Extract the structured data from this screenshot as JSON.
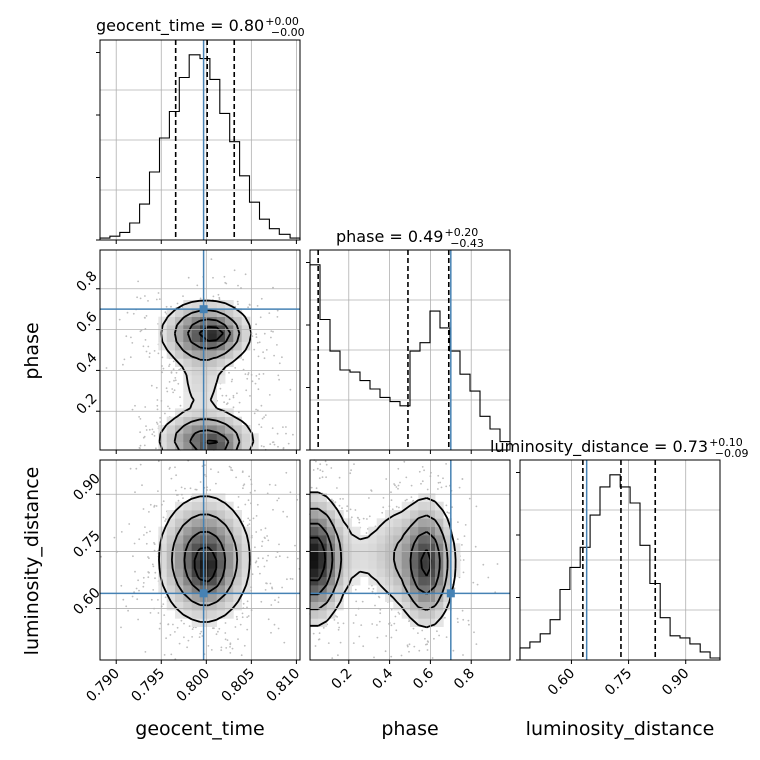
{
  "chart_data": {
    "type": "corner",
    "parameters": [
      "geocent_time",
      "phase",
      "luminosity_distance"
    ],
    "axis_labels": {
      "geocent_time": "geocent_time",
      "phase": "phase",
      "luminosity_distance": "luminosity_distance"
    },
    "titles": [
      {
        "param": "geocent_time",
        "label": "geocent_time = 0.80",
        "sup": "+0.00",
        "sub": "−0.00"
      },
      {
        "param": "phase",
        "label": "phase = 0.49",
        "sup": "+0.20",
        "sub": "−0.43"
      },
      {
        "param": "luminosity_distance",
        "label": "luminosity_distance = 0.73",
        "sup": "+0.10",
        "sub": "−0.09"
      }
    ],
    "ranges": {
      "geocent_time": [
        0.7882,
        0.8104
      ],
      "phase": [
        0.01,
        0.99
      ],
      "luminosity_distance": [
        0.465,
        0.99
      ]
    },
    "ticks": {
      "geocent_time": [
        "0.790",
        "0.795",
        "0.800",
        "0.805",
        "0.810"
      ],
      "phase": [
        "0.2",
        "0.4",
        "0.6",
        "0.8"
      ],
      "luminosity_distance": [
        "0.60",
        "0.75",
        "0.90"
      ]
    },
    "truths": {
      "geocent_time": 0.7997,
      "phase": 0.7,
      "luminosity_distance": 0.64
    },
    "quantiles": {
      "geocent_time": [
        0.7966,
        0.8001,
        0.8031
      ],
      "phase": [
        0.05,
        0.49,
        0.69
      ],
      "luminosity_distance": [
        0.63,
        0.73,
        0.82
      ]
    },
    "histograms": {
      "geocent_time": {
        "edges": [
          0.7882,
          0.7893,
          0.7904,
          0.7915,
          0.7926,
          0.7937,
          0.7948,
          0.7959,
          0.797,
          0.7981,
          0.7993,
          0.8004,
          0.8015,
          0.8026,
          0.8037,
          0.8048,
          0.8059,
          0.807,
          0.8081,
          0.8093,
          0.8104
        ],
        "counts": [
          1,
          2,
          4,
          9,
          19,
          36,
          54,
          68,
          86,
          98,
          96,
          85,
          67,
          52,
          34,
          20,
          11,
          6,
          3,
          1
        ]
      },
      "phase": {
        "edges": [
          0.01,
          0.059,
          0.108,
          0.157,
          0.206,
          0.255,
          0.304,
          0.353,
          0.402,
          0.451,
          0.5,
          0.549,
          0.598,
          0.647,
          0.696,
          0.745,
          0.794,
          0.843,
          0.892,
          0.941,
          0.99
        ],
        "counts": [
          88,
          62,
          47,
          38,
          37,
          33,
          29,
          25,
          23,
          21,
          47,
          51,
          66,
          58,
          47,
          36,
          28,
          16,
          10,
          4
        ]
      },
      "luminosity_distance": {
        "edges": [
          0.465,
          0.491,
          0.518,
          0.544,
          0.57,
          0.596,
          0.623,
          0.649,
          0.675,
          0.701,
          0.728,
          0.754,
          0.78,
          0.806,
          0.833,
          0.859,
          0.885,
          0.911,
          0.938,
          0.964,
          0.99
        ],
        "counts": [
          6,
          9,
          13,
          20,
          35,
          46,
          56,
          72,
          86,
          92,
          86,
          78,
          57,
          38,
          21,
          12,
          11,
          8,
          4,
          1
        ]
      }
    },
    "pair_density": {
      "geocent_time__phase": [
        {
          "x": 0.8,
          "y": 0.58,
          "sx": 0.0026,
          "sy": 0.085,
          "w": 1.0
        },
        {
          "x": 0.801,
          "y": 0.58,
          "sx": 0.0011,
          "sy": 0.03,
          "w": 0.45
        },
        {
          "x": 0.8,
          "y": 0.06,
          "sx": 0.0028,
          "sy": 0.075,
          "w": 0.9
        },
        {
          "x": 0.801,
          "y": 0.03,
          "sx": 0.0012,
          "sy": 0.025,
          "w": 0.4
        },
        {
          "x": 0.7995,
          "y": 0.33,
          "sx": 0.0018,
          "sy": 0.09,
          "w": 0.22
        }
      ],
      "geocent_time__luminosity_distance": [
        {
          "x": 0.7998,
          "y": 0.73,
          "sx": 0.0026,
          "sy": 0.085,
          "w": 1.0
        },
        {
          "x": 0.8,
          "y": 0.7,
          "sx": 0.001,
          "sy": 0.04,
          "w": 0.35
        }
      ],
      "phase__luminosity_distance": [
        {
          "x": 0.03,
          "y": 0.73,
          "sx": 0.075,
          "sy": 0.085,
          "w": 0.95
        },
        {
          "x": 0.58,
          "y": 0.72,
          "sx": 0.07,
          "sy": 0.085,
          "w": 0.8
        },
        {
          "x": 0.27,
          "y": 0.74,
          "sx": 0.1,
          "sy": 0.07,
          "w": 0.12
        },
        {
          "x": 0.42,
          "y": 0.74,
          "sx": 0.06,
          "sy": 0.08,
          "w": 0.18
        }
      ]
    },
    "density_levels": [
      0.12,
      0.3,
      0.55,
      0.8
    ],
    "grid": true
  }
}
